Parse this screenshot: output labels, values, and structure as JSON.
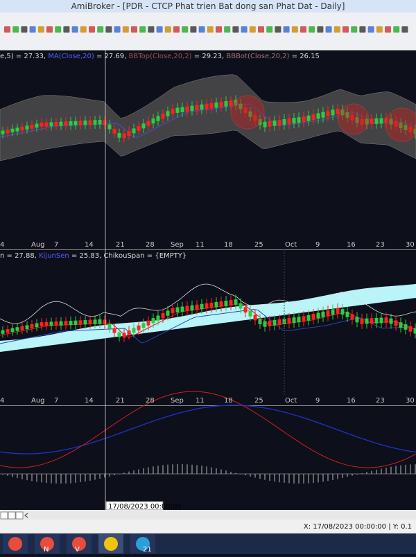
{
  "window": {
    "title": "AmiBroker - [PDR - CTCP Phat trien Bat dong san Phat Dat - Daily]"
  },
  "panes": [
    {
      "header": [
        "e,5) = 27.33,",
        "MA(Close,20)",
        "= 27.69,",
        "BBTop(Close,20,2)",
        "= 29.23,",
        "BBBot(Close,20,2)",
        "= 26.15"
      ],
      "axis_labels": [
        "4",
        "Aug",
        "7",
        "14",
        "21",
        "28",
        "Sep",
        "11",
        "18",
        "25",
        "Oct",
        "9",
        "16",
        "23",
        "30"
      ]
    },
    {
      "header": [
        "n = 27.88,",
        "KijunSen",
        "= 25.83, ChikouSpan = {EMPTY}"
      ],
      "axis_labels": [
        "4",
        "Aug",
        "7",
        "14",
        "21",
        "28",
        "Sep",
        "11",
        "18",
        "25",
        "Oct",
        "9",
        "16",
        "23",
        "30"
      ]
    }
  ],
  "cursor_tooltip": "17/08/2023 00:00:00",
  "status": "X: 17/08/2023 00:00:00 | Y: 0.1",
  "taskbar": [
    "N",
    "V",
    "21"
  ]
}
